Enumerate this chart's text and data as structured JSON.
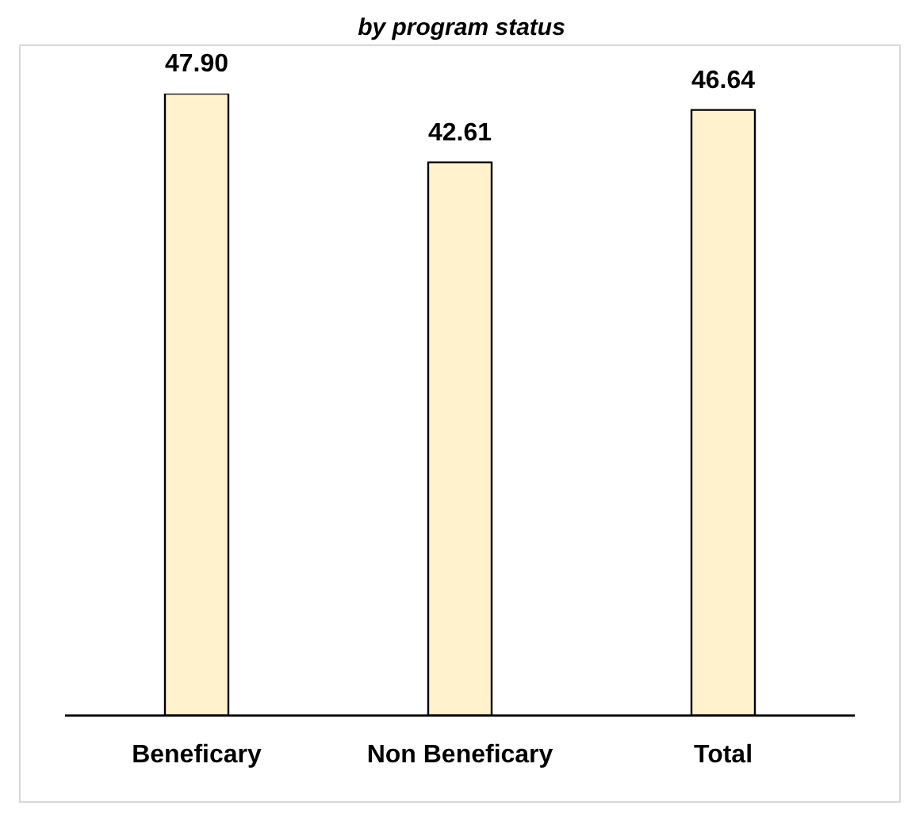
{
  "chart_data": {
    "type": "bar",
    "title": "by program status",
    "categories": [
      "Beneficary",
      "Non Beneficary",
      "Total"
    ],
    "values": [
      47.9,
      42.61,
      46.64
    ],
    "value_labels": [
      "47.90",
      "42.61",
      "46.64"
    ],
    "color": "#fff2cc"
  }
}
